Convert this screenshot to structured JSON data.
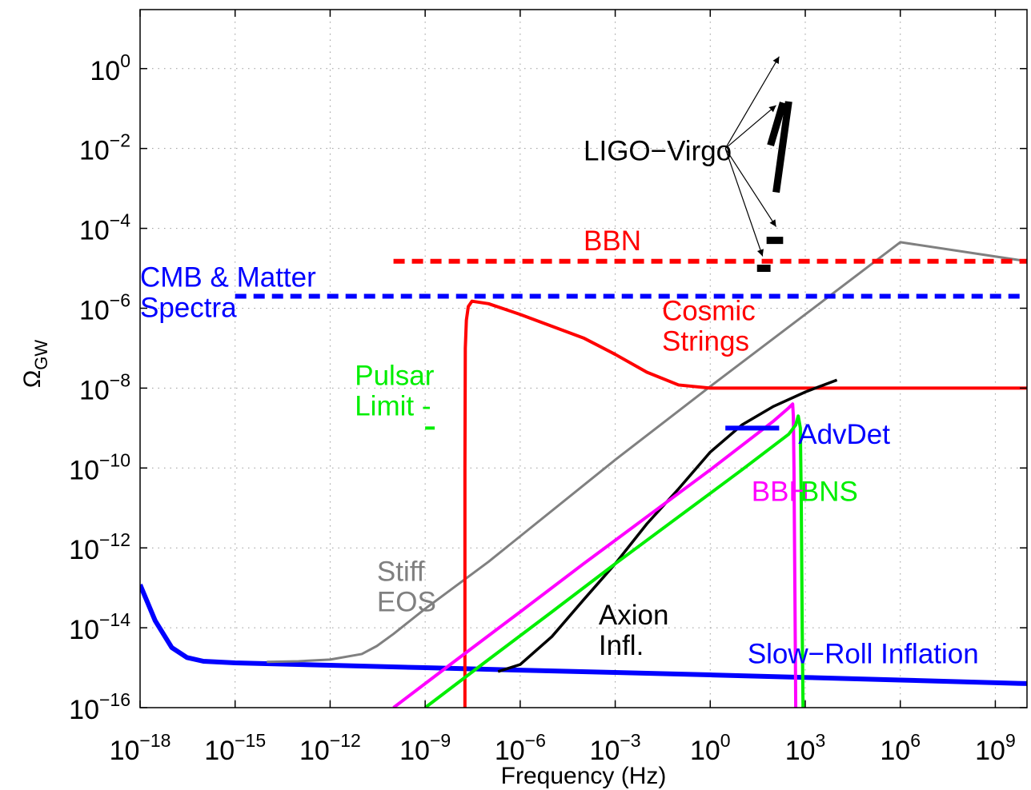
{
  "chart_data": {
    "type": "line",
    "title": "",
    "xlabel": "Frequency (Hz)",
    "ylabel_main": "Ω",
    "ylabel_sub": "GW",
    "x_scale": "log",
    "y_scale": "log",
    "xlim": [
      1e-18,
      10000000000.0
    ],
    "ylim": [
      1e-16,
      30.0
    ],
    "grid": true,
    "x_ticks": [
      {
        "base": "10",
        "exp": "−18",
        "value": 1e-18
      },
      {
        "base": "10",
        "exp": "−15",
        "value": 1e-15
      },
      {
        "base": "10",
        "exp": "−12",
        "value": 1e-12
      },
      {
        "base": "10",
        "exp": "−9",
        "value": 1e-09
      },
      {
        "base": "10",
        "exp": "−6",
        "value": 1e-06
      },
      {
        "base": "10",
        "exp": "−3",
        "value": 0.001
      },
      {
        "base": "10",
        "exp": "0",
        "value": 1
      },
      {
        "base": "10",
        "exp": "3",
        "value": 1000.0
      },
      {
        "base": "10",
        "exp": "6",
        "value": 1000000.0
      },
      {
        "base": "10",
        "exp": "9",
        "value": 1000000000.0
      }
    ],
    "y_ticks": [
      {
        "base": "10",
        "exp": "−16",
        "value": 1e-16
      },
      {
        "base": "10",
        "exp": "−14",
        "value": 1e-14
      },
      {
        "base": "10",
        "exp": "−12",
        "value": 1e-12
      },
      {
        "base": "10",
        "exp": "−10",
        "value": 1e-10
      },
      {
        "base": "10",
        "exp": "−8",
        "value": 1e-08
      },
      {
        "base": "10",
        "exp": "−6",
        "value": 1e-06
      },
      {
        "base": "10",
        "exp": "−4",
        "value": 0.0001
      },
      {
        "base": "10",
        "exp": "−2",
        "value": 0.01
      },
      {
        "base": "10",
        "exp": "0",
        "value": 1
      }
    ],
    "series": [
      {
        "name": "Slow−Roll Inflation",
        "color": "#0000ff",
        "style": "solid",
        "width": 6,
        "x": [
          1e-18,
          3e-18,
          1e-17,
          3e-17,
          1e-16,
          1e-15,
          1e-12,
          1e-09,
          1e-06,
          0.001,
          1,
          1000.0,
          1000000.0,
          10000000000.0
        ],
        "y": [
          1.2e-13,
          1.5e-14,
          3.2e-15,
          1.8e-15,
          1.45e-15,
          1.32e-15,
          1.15e-15,
          1e-15,
          8.7e-16,
          7.6e-16,
          6.6e-16,
          5.7e-16,
          4.9e-16,
          4e-16
        ]
      },
      {
        "name": "Stiff EOS",
        "color": "#808080",
        "style": "solid",
        "width": 3,
        "x": [
          1e-14,
          1e-13,
          1e-12,
          1e-11,
          3e-11,
          1e-10,
          1e-09,
          1e-07,
          0.001,
          1,
          1000.0,
          1000000.0,
          10000000000.0
        ],
        "y": [
          1.4e-15,
          1.45e-15,
          1.6e-15,
          2.2e-15,
          3.5e-15,
          7e-15,
          3e-14,
          4.5e-13,
          1.6e-10,
          1.1e-08,
          7e-07,
          4.5e-05,
          1.5e-05
        ]
      },
      {
        "name": "Cosmic Strings",
        "color": "#ff0000",
        "style": "solid",
        "width": 4,
        "x": [
          1.8e-08,
          1.8e-08,
          1.85e-08,
          2e-08,
          2.3e-08,
          3e-08,
          1e-07,
          1e-06,
          0.0001,
          0.001,
          0.01,
          0.1,
          1,
          1000.0,
          10000000000.0
        ],
        "y": [
          1e-16,
          1e-10,
          1e-07,
          5e-07,
          1.1e-06,
          1.5e-06,
          1.3e-06,
          7e-07,
          1.8e-07,
          7e-08,
          2.5e-08,
          1.2e-08,
          1e-08,
          1e-08,
          1e-08
        ]
      },
      {
        "name": "Axion Infl.",
        "color": "#000000",
        "style": "solid",
        "width": 3.5,
        "x": [
          2e-07,
          1e-06,
          1e-05,
          0.0001,
          0.001,
          0.01,
          0.1,
          1,
          10,
          100,
          1000.0,
          10000.0
        ],
        "y": [
          8e-16,
          1.2e-15,
          6e-15,
          5e-14,
          4e-13,
          4e-12,
          3e-11,
          2.5e-10,
          1.2e-09,
          3.5e-09,
          8e-09,
          1.6e-08
        ]
      },
      {
        "name": "BBH",
        "color": "#ff00ff",
        "style": "solid",
        "width": 4,
        "x": [
          1e-10,
          1e-08,
          1e-06,
          0.0001,
          0.01,
          1,
          100,
          300,
          400,
          420,
          440,
          470,
          500
        ],
        "y": [
          1e-16,
          1.6e-15,
          2.5e-14,
          4e-13,
          6e-12,
          9e-11,
          1.5e-09,
          3.2e-09,
          4e-09,
          2e-09,
          1e-10,
          1e-13,
          1e-16
        ]
      },
      {
        "name": "BNS",
        "color": "#00ee00",
        "style": "solid",
        "width": 4,
        "x": [
          1e-09,
          1e-07,
          1e-05,
          0.001,
          0.1,
          10,
          300,
          500,
          600,
          700,
          750,
          800,
          850
        ],
        "y": [
          1e-16,
          1.6e-15,
          2.5e-14,
          4e-13,
          6e-12,
          9e-11,
          7e-10,
          1.2e-09,
          2e-09,
          1e-09,
          1e-11,
          1e-14,
          1e-16
        ]
      },
      {
        "name": "BBN",
        "color": "#ff0000",
        "style": "dashed",
        "width": 6,
        "x": [
          1e-10,
          10000000000.0
        ],
        "y": [
          1.5e-05,
          1.5e-05
        ]
      },
      {
        "name": "CMB & Matter Spectra",
        "color": "#0000ff",
        "style": "dashed",
        "width": 6,
        "x": [
          1e-15,
          10000000000.0
        ],
        "y": [
          2e-06,
          2e-06
        ]
      },
      {
        "name": "AdvDet",
        "color": "#0000ff",
        "style": "solid",
        "width": 6,
        "x": [
          3,
          150
        ],
        "y": [
          1e-09,
          1e-09
        ]
      },
      {
        "name": "Pulsar Limit",
        "color": "#00ee00",
        "style": "solid",
        "width": 4,
        "x": [
          1e-09,
          2e-09
        ],
        "y": [
          1e-09,
          1e-09
        ]
      }
    ],
    "ligo_bars": [
      {
        "x": [
          120,
          300
        ],
        "y": [
          0.0008,
          0.15
        ]
      },
      {
        "x": [
          80,
          200
        ],
        "y": [
          0.012,
          0.14
        ]
      },
      {
        "x": [
          60,
          200
        ],
        "y": [
          5e-05,
          5e-05
        ]
      },
      {
        "x": [
          30,
          80
        ],
        "y": [
          1e-05,
          1e-05
        ]
      }
    ],
    "ligo_arrow_origin": {
      "x": 3,
      "y": 0.01
    },
    "ligo_arrow_targets": [
      {
        "x": 150,
        "y": 2.0
      },
      {
        "x": 120,
        "y": 0.12
      },
      {
        "x": 120,
        "y": 0.00011
      },
      {
        "x": 45,
        "y": 2e-05
      }
    ],
    "annotations": [
      {
        "id": "ligo-virgo",
        "lines": [
          "LIGO−Virgo"
        ],
        "color": "#000000",
        "x": 0.0001,
        "y": 0.005
      },
      {
        "id": "bbn",
        "lines": [
          "BBN"
        ],
        "color": "#ff0000",
        "x": 0.0001,
        "y": 2.8e-05
      },
      {
        "id": "cmb",
        "lines": [
          "CMB & Matter",
          "Spectra"
        ],
        "color": "#0000ff",
        "x": 1e-18,
        "y": 3.5e-06
      },
      {
        "id": "cosmic-strings",
        "lines": [
          "Cosmic",
          "Strings"
        ],
        "color": "#ff0000",
        "x": 0.03,
        "y": 5e-07
      },
      {
        "id": "pulsar",
        "lines": [
          "Pulsar",
          "Limit  -"
        ],
        "color": "#00ee00",
        "x": 6e-12,
        "y": 1.2e-08
      },
      {
        "id": "advdet",
        "lines": [
          "AdvDet"
        ],
        "color": "#0000ff",
        "x": 600,
        "y": 4e-10
      },
      {
        "id": "bbh",
        "lines": [
          "BBH"
        ],
        "color": "#ff00ff",
        "x": 20,
        "y": 1.5e-11
      },
      {
        "id": "bns",
        "lines": [
          "BNS"
        ],
        "color": "#00ee00",
        "x": 700,
        "y": 1.5e-11
      },
      {
        "id": "stiff-eos",
        "lines": [
          "Stiff",
          "EOS"
        ],
        "color": "#808080",
        "x": 3e-11,
        "y": 1.5e-13
      },
      {
        "id": "axion",
        "lines": [
          "Axion",
          "Infl."
        ],
        "color": "#000000",
        "x": 0.0003,
        "y": 1.2e-14
      },
      {
        "id": "slow-roll",
        "lines": [
          "Slow−Roll Inflation"
        ],
        "color": "#0000ff",
        "x": 15.0,
        "y": 1.3e-15
      }
    ]
  }
}
